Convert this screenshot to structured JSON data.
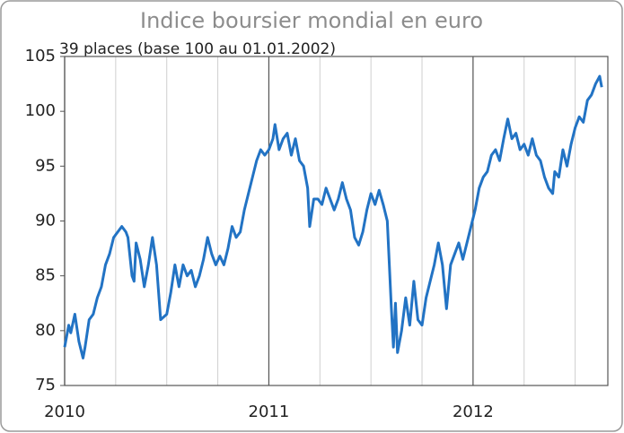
{
  "chart_data": {
    "type": "line",
    "title": "Indice boursier mondial en euro",
    "subtitle": "39 places (base 100 au 01.01.2002)",
    "color": "#2273c4",
    "grid": "x",
    "x_minor_divisions": 4,
    "xlim": [
      2010,
      2012.66
    ],
    "xticks": [
      2010,
      2011,
      2012
    ],
    "ylim": [
      75,
      105
    ],
    "yticks": [
      75,
      80,
      85,
      90,
      95,
      100,
      105
    ],
    "x": [
      2010.0,
      2010.02,
      2010.03,
      2010.05,
      2010.07,
      2010.09,
      2010.1,
      2010.12,
      2010.14,
      2010.16,
      2010.18,
      2010.2,
      2010.22,
      2010.24,
      2010.26,
      2010.28,
      2010.3,
      2010.31,
      2010.33,
      2010.34,
      2010.35,
      2010.37,
      2010.39,
      2010.41,
      2010.43,
      2010.45,
      2010.47,
      2010.5,
      2010.52,
      2010.54,
      2010.56,
      2010.58,
      2010.6,
      2010.62,
      2010.64,
      2010.66,
      2010.68,
      2010.7,
      2010.72,
      2010.74,
      2010.76,
      2010.78,
      2010.8,
      2010.82,
      2010.84,
      2010.86,
      2010.88,
      2010.9,
      2010.92,
      2010.94,
      2010.96,
      2010.98,
      2011.0,
      2011.02,
      2011.03,
      2011.05,
      2011.07,
      2011.09,
      2011.11,
      2011.13,
      2011.15,
      2011.17,
      2011.19,
      2011.2,
      2011.22,
      2011.24,
      2011.26,
      2011.28,
      2011.3,
      2011.32,
      2011.34,
      2011.36,
      2011.38,
      2011.4,
      2011.42,
      2011.44,
      2011.46,
      2011.48,
      2011.5,
      2011.52,
      2011.54,
      2011.56,
      2011.58,
      2011.59,
      2011.6,
      2011.61,
      2011.62,
      2011.63,
      2011.65,
      2011.67,
      2011.69,
      2011.71,
      2011.73,
      2011.75,
      2011.77,
      2011.79,
      2011.81,
      2011.83,
      2011.85,
      2011.87,
      2011.89,
      2011.91,
      2011.93,
      2011.95,
      2011.97,
      2011.99,
      2012.01,
      2012.03,
      2012.05,
      2012.07,
      2012.09,
      2012.11,
      2012.13,
      2012.15,
      2012.17,
      2012.19,
      2012.21,
      2012.23,
      2012.25,
      2012.27,
      2012.29,
      2012.31,
      2012.33,
      2012.35,
      2012.37,
      2012.39,
      2012.4,
      2012.42,
      2012.44,
      2012.46,
      2012.48,
      2012.5,
      2012.52,
      2012.54,
      2012.56,
      2012.58,
      2012.6,
      2012.62,
      2012.63
    ],
    "values": [
      78.5,
      80.5,
      79.8,
      81.5,
      79,
      77.5,
      78.5,
      81,
      81.5,
      83,
      84,
      86,
      87,
      88.5,
      89,
      89.5,
      89,
      88.5,
      85,
      84.5,
      88,
      86.5,
      84,
      86,
      88.5,
      86,
      81,
      81.5,
      83.5,
      86,
      84,
      86,
      85,
      85.5,
      84,
      85,
      86.5,
      88.5,
      87,
      86,
      86.8,
      86,
      87.5,
      89.5,
      88.5,
      89,
      91,
      92.5,
      94,
      95.5,
      96.5,
      96,
      96.5,
      97.5,
      98.8,
      96.5,
      97.5,
      98,
      96,
      97.5,
      95.5,
      95,
      93,
      89.5,
      92,
      92,
      91.5,
      93,
      92,
      91,
      92,
      93.5,
      92,
      91,
      88.5,
      87.8,
      89,
      91,
      92.5,
      91.5,
      92.8,
      91.5,
      90,
      86,
      82,
      78.5,
      82.5,
      78,
      80,
      83,
      80.5,
      84.5,
      81,
      80.5,
      83,
      84.5,
      86,
      88,
      86,
      82,
      86,
      87,
      88,
      86.5,
      88,
      89.5,
      91,
      93,
      94,
      94.5,
      96,
      96.5,
      95.5,
      97.5,
      99.3,
      97.5,
      98,
      96.5,
      97,
      96,
      97.5,
      96,
      95.5,
      94,
      93,
      92.5,
      94.5,
      94,
      96.5,
      95,
      97,
      98.5,
      99.5,
      99,
      101,
      101.5,
      102.5,
      103.2,
      102.2
    ]
  }
}
